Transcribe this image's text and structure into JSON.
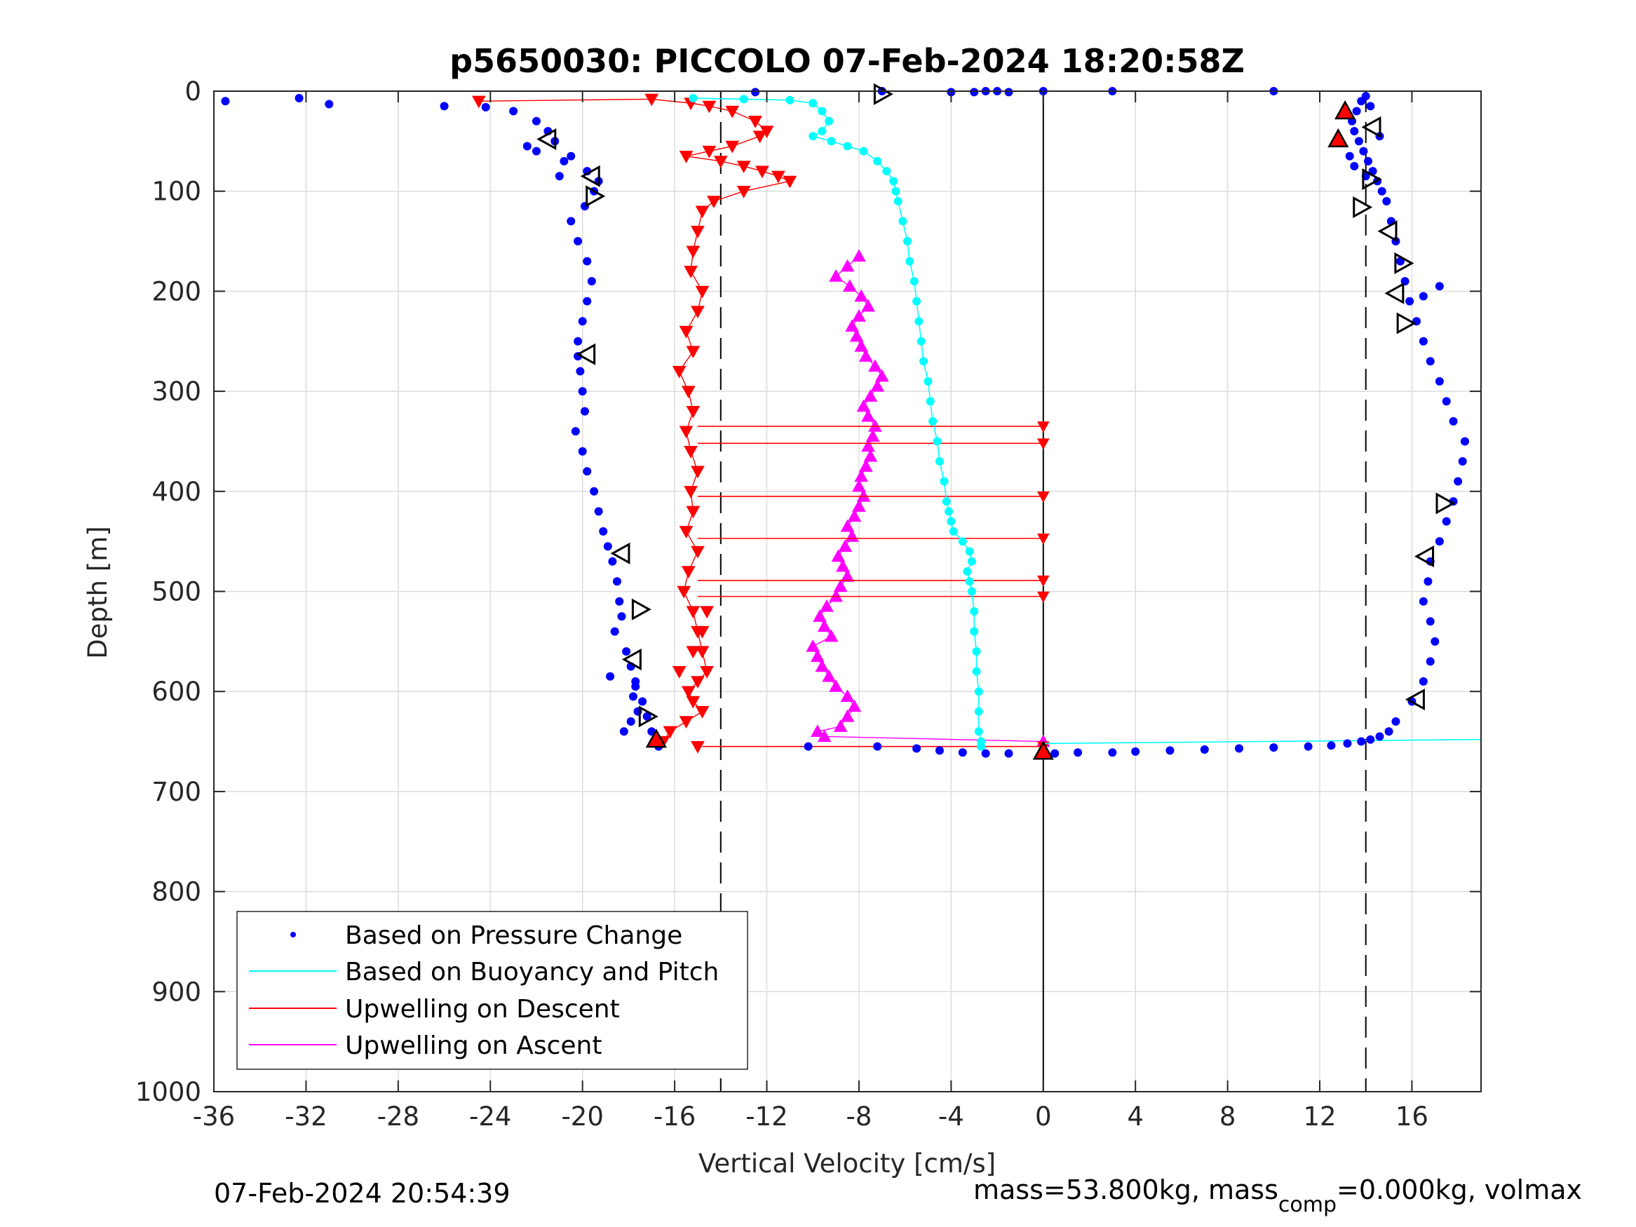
{
  "chart_data": {
    "type": "scatter",
    "title": "p5650030: PICCOLO 07-Feb-2024 18:20:58Z",
    "xlabel": "Vertical Velocity [cm/s]",
    "ylabel": "Depth [m]",
    "xlim": [
      -36,
      19
    ],
    "ylim": [
      0,
      1000
    ],
    "y_reversed": true,
    "grid": true,
    "x_ticks": [
      -36,
      -32,
      -28,
      -24,
      -20,
      -16,
      -12,
      -8,
      -4,
      0,
      4,
      8,
      12,
      16
    ],
    "y_ticks": [
      0,
      100,
      200,
      300,
      400,
      500,
      600,
      700,
      800,
      900,
      1000
    ],
    "x_tick_labels": [
      "-36",
      "-32",
      "-28",
      "-24",
      "-20",
      "-16",
      "-12",
      "-8",
      "-4",
      "0",
      "4",
      "8",
      "12",
      "16"
    ],
    "y_tick_labels": [
      "0",
      "100",
      "200",
      "300",
      "400",
      "500",
      "600",
      "700",
      "800",
      "900",
      "1000"
    ],
    "reference_lines": {
      "solid_x": 0,
      "dashed_x": [
        -14,
        14
      ]
    },
    "legend_location": "bottom-left",
    "legend_entries": [
      "Based on Pressure Change",
      "Based on Buoyancy and Pitch",
      "Upwelling on Descent",
      "Upwelling on Ascent"
    ],
    "series": [
      {
        "name": "Based on Pressure Change",
        "color": "#0000ff",
        "marker": "dot",
        "descent": {
          "x": [
            -35.5,
            -32.3,
            -31,
            -26,
            -24.2,
            -23,
            -22,
            -21.5,
            -22.4,
            -22,
            -21.2,
            -20.8,
            -20.5,
            -21,
            -19.8,
            -19.3,
            -19.5,
            -19.9,
            -20.5,
            -20.2,
            -19.8,
            -19.6,
            -19.8,
            -20,
            -20.2,
            -20.2,
            -20.1,
            -20,
            -19.9,
            -20.3,
            -20,
            -19.8,
            -19.5,
            -19.3,
            -19.1,
            -18.9,
            -18.7,
            -18.5,
            -18.4,
            -18.3,
            -18.6,
            -18.1,
            -17.9,
            -17.7,
            -17.8,
            -17.6,
            -17.9,
            -18.2,
            -18.8,
            -17.7,
            -17.4,
            -17.2,
            -17,
            -16.9,
            -16.7
          ],
          "y": [
            10,
            7,
            13,
            15,
            16,
            20,
            30,
            40,
            55,
            60,
            50,
            70,
            65,
            85,
            80,
            90,
            100,
            115,
            130,
            150,
            170,
            190,
            210,
            230,
            250,
            265,
            280,
            300,
            320,
            340,
            360,
            380,
            400,
            420,
            440,
            455,
            470,
            490,
            510,
            525,
            540,
            560,
            575,
            590,
            605,
            620,
            630,
            640,
            585,
            595,
            610,
            625,
            640,
            650,
            655
          ]
        },
        "ascent": {
          "x": [
            -10.2,
            -7.2,
            -5.5,
            -4.5,
            -3.5,
            -2.5,
            -1.5,
            0.5,
            1.5,
            3,
            4,
            5.5,
            7,
            8.5,
            10,
            11.5,
            12.5,
            13.2,
            13.8,
            14.2,
            14.6,
            15,
            15.3,
            16,
            16.5,
            16.8,
            17,
            16.8,
            16.5,
            16.7,
            16.8,
            17.2,
            17.5,
            17.8,
            18,
            18.2,
            18.3,
            17.8,
            17.5,
            17.2,
            16.8,
            16.5,
            16.2,
            15.9,
            15.7,
            15.5,
            15.3,
            15.1,
            14.9,
            14.7,
            14.5,
            14.3,
            14.1,
            13.9,
            13.7,
            13.5,
            13.4,
            13.6,
            13.8,
            14,
            14.2,
            14.6,
            13.3,
            13.5,
            14,
            17.2,
            16.5
          ],
          "y": [
            655,
            655,
            657,
            659,
            661,
            662,
            662,
            662,
            661,
            661,
            660,
            659,
            658,
            657,
            656,
            655,
            654,
            652,
            650,
            648,
            645,
            640,
            630,
            610,
            590,
            570,
            550,
            530,
            510,
            490,
            470,
            450,
            430,
            410,
            390,
            370,
            350,
            330,
            310,
            290,
            270,
            250,
            230,
            210,
            190,
            170,
            150,
            130,
            110,
            100,
            90,
            80,
            70,
            60,
            50,
            40,
            30,
            20,
            10,
            5,
            15,
            45,
            65,
            75,
            85,
            195,
            205
          ]
        },
        "surface_points": {
          "x": [
            -12.5,
            -7,
            -4,
            -3,
            -2.5,
            -2,
            -1.5,
            0,
            3,
            10
          ],
          "y": [
            1,
            0,
            1,
            1,
            0,
            0,
            1,
            0,
            0,
            0
          ]
        }
      },
      {
        "name": "Based on Buoyancy and Pitch",
        "color": "#00ffff",
        "marker": "dot-line",
        "descent": {
          "x": [
            -15.2,
            -13,
            -11,
            -10,
            -9.6,
            -9.3,
            -9.6,
            -10,
            -9.2,
            -8.5,
            -7.8,
            -7.2,
            -6.8,
            -6.5,
            -6.4,
            -6.3,
            -6.1,
            -5.9,
            -5.8,
            -5.6,
            -5.5,
            -5.4,
            -5.3,
            -5.2,
            -5,
            -4.9,
            -4.8,
            -4.6,
            -4.5,
            -4.3,
            -4.2,
            -4.1,
            -4,
            -3.9,
            -3.5,
            -3.2,
            -3.1,
            -3.3,
            -3.2,
            -3.1,
            -3,
            -3,
            -2.9,
            -2.9,
            -2.8,
            -2.8,
            -2.8,
            -2.7,
            -2.7
          ],
          "y": [
            7,
            8,
            9,
            12,
            20,
            30,
            40,
            45,
            50,
            55,
            60,
            70,
            80,
            90,
            100,
            110,
            130,
            150,
            170,
            190,
            210,
            230,
            250,
            270,
            290,
            310,
            330,
            350,
            370,
            390,
            410,
            420,
            430,
            440,
            450,
            460,
            470,
            480,
            490,
            500,
            520,
            540,
            560,
            580,
            600,
            620,
            640,
            650,
            655
          ]
        },
        "ascent": {
          "x": [
            0,
            19
          ],
          "y": [
            652,
            648
          ]
        }
      },
      {
        "name": "Upwelling on Descent",
        "color": "#ff0000",
        "marker": "triangle-down",
        "descent": {
          "x": [
            -24.5,
            -17,
            -15.3,
            -14.5,
            -13.5,
            -12.5,
            -12,
            -12.3,
            -13.5,
            -14.5,
            -15.5,
            -14,
            -13,
            -12.2,
            -11.5,
            -11,
            -13,
            -14.3,
            -14.8,
            -15,
            -15.2,
            -15.3,
            -14.8,
            -15,
            -15.5,
            -15.2,
            -15.8,
            -15.4,
            -15.2,
            -15.5,
            -15.3,
            -15,
            -15.3,
            -15.2,
            -15.5,
            -15,
            -15.4,
            -15.6,
            -15.2,
            -15,
            -14.8,
            -14.6,
            -15,
            -15.4,
            -15.2,
            -14.8,
            -15.5,
            -16.2,
            -16.5,
            -15.8,
            -15.2,
            -14.8,
            -14.6,
            -15
          ],
          "y": [
            10,
            8,
            12,
            15,
            20,
            30,
            40,
            45,
            55,
            60,
            65,
            70,
            75,
            80,
            85,
            90,
            100,
            110,
            120,
            140,
            160,
            180,
            200,
            220,
            240,
            260,
            280,
            300,
            320,
            340,
            360,
            380,
            400,
            420,
            440,
            460,
            480,
            500,
            520,
            540,
            560,
            580,
            590,
            600,
            610,
            620,
            630,
            640,
            650,
            580,
            560,
            540,
            520,
            655
          ]
        },
        "stalled_points_x": 0,
        "stalled_segments": [
          {
            "depth": 335,
            "x_from": -15,
            "x_to": 0
          },
          {
            "depth": 352,
            "x_from": -15,
            "x_to": 0
          },
          {
            "depth": 405,
            "x_from": -15,
            "x_to": 0
          },
          {
            "depth": 447,
            "x_from": -15,
            "x_to": 0
          },
          {
            "depth": 489,
            "x_from": -15,
            "x_to": 0
          },
          {
            "depth": 505,
            "x_from": -15,
            "x_to": 0
          },
          {
            "depth": 655,
            "x_from": -14.8,
            "x_to": 0
          }
        ]
      },
      {
        "name": "Upwelling on Ascent",
        "color": "#ff00ff",
        "marker": "triangle-up",
        "ascent": {
          "x": [
            0,
            -9.5,
            -9.8,
            -8.8,
            -8.5,
            -8.2,
            -8.5,
            -9,
            -9.3,
            -9.6,
            -9.8,
            -10,
            -9.2,
            -9.5,
            -9.7,
            -9.4,
            -9,
            -8.8,
            -8.5,
            -8.7,
            -8.9,
            -8.6,
            -8.3,
            -8.5,
            -8.2,
            -8,
            -7.8,
            -8,
            -7.9,
            -7.7,
            -7.5,
            -7.6,
            -7.4,
            -7.3,
            -7.6,
            -7.8,
            -7.5,
            -7.2,
            -7,
            -7.3,
            -7.7,
            -7.9,
            -8.1,
            -8.3,
            -8,
            -7.6,
            -7.9,
            -8.4,
            -9,
            -8.5,
            -8
          ],
          "y": [
            650,
            645,
            640,
            635,
            625,
            615,
            605,
            595,
            585,
            575,
            565,
            555,
            545,
            535,
            525,
            515,
            505,
            495,
            485,
            475,
            465,
            455,
            445,
            435,
            425,
            415,
            405,
            395,
            385,
            375,
            365,
            355,
            345,
            335,
            325,
            315,
            305,
            295,
            285,
            275,
            265,
            255,
            245,
            235,
            225,
            215,
            205,
            195,
            185,
            175,
            165
          ]
        }
      }
    ],
    "turn_markers": {
      "red_up_triangles": [
        {
          "x": 13.1,
          "y": 20
        },
        {
          "x": 12.8,
          "y": 48
        },
        {
          "x": -16.8,
          "y": 648
        },
        {
          "x": 0,
          "y": 660
        }
      ],
      "black_right_triangles": [
        {
          "x": -7,
          "y": 3
        },
        {
          "x": -19.5,
          "y": 105
        },
        {
          "x": -17.5,
          "y": 518
        },
        {
          "x": -17.2,
          "y": 625
        },
        {
          "x": 14.2,
          "y": 88
        },
        {
          "x": 13.8,
          "y": 116
        },
        {
          "x": 15.6,
          "y": 172
        },
        {
          "x": 15.7,
          "y": 232
        },
        {
          "x": 17.4,
          "y": 412
        }
      ],
      "black_left_triangles": [
        {
          "x": -21.5,
          "y": 48
        },
        {
          "x": -19.6,
          "y": 85
        },
        {
          "x": -19.8,
          "y": 263
        },
        {
          "x": -18.3,
          "y": 462
        },
        {
          "x": -17.8,
          "y": 568
        },
        {
          "x": 14.3,
          "y": 36
        },
        {
          "x": 15,
          "y": 140
        },
        {
          "x": 15.3,
          "y": 202
        },
        {
          "x": 16.6,
          "y": 465
        },
        {
          "x": 16.2,
          "y": 608
        }
      ]
    }
  },
  "footer": {
    "timestamp": "07-Feb-2024 20:54:39",
    "mass_prefix": "mass=53.800kg, mass",
    "mass_sub": "comp",
    "mass_suffix": "=0.000kg, volmax"
  }
}
